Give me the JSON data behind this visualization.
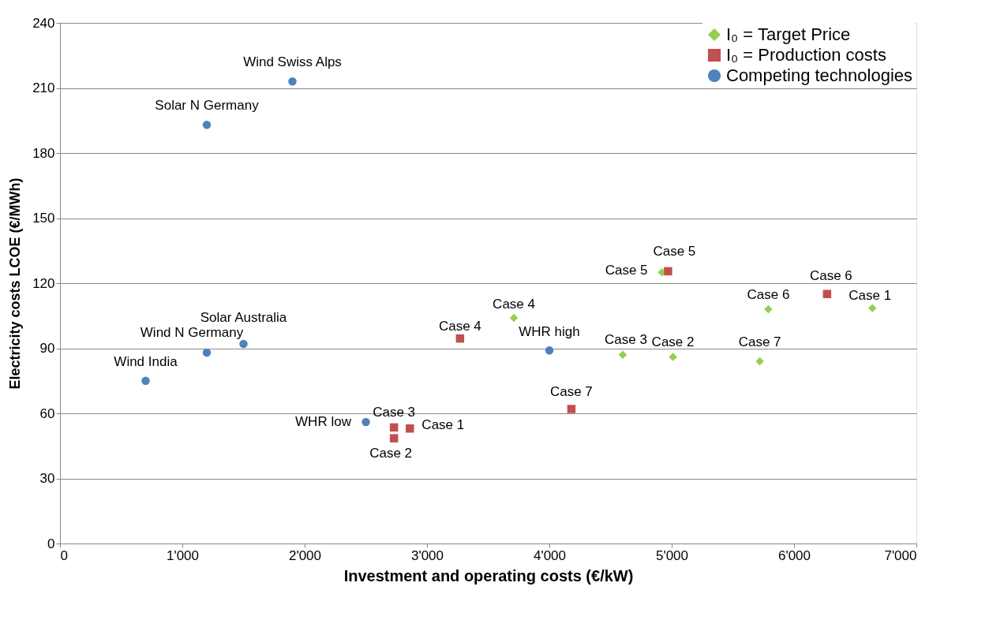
{
  "chart_data": {
    "type": "scatter",
    "xlabel": "Investment and operating costs (€/kW)",
    "ylabel": "Electricity costs LCOE (€/MWh)",
    "xlim": [
      0,
      7000
    ],
    "xticks": [
      0,
      {
        "value": 1000,
        "label": "1'000"
      },
      {
        "value": 2000,
        "label": "2'000"
      },
      {
        "value": 3000,
        "label": "3'000"
      },
      {
        "value": 4000,
        "label": "4'000"
      },
      {
        "value": 5000,
        "label": "5'000"
      },
      {
        "value": 6000,
        "label": "6'000"
      },
      {
        "value": 7000,
        "label": "7'000"
      }
    ],
    "ylim": [
      0,
      240
    ],
    "yticks": [
      0,
      30,
      60,
      90,
      120,
      150,
      180,
      210,
      240
    ],
    "grid": "y",
    "legend": "top right",
    "series": [
      {
        "name": "I₀ = Target Price",
        "color": "#92d050",
        "marker": "diamond",
        "x": [
          4920,
          3710,
          4600,
          5010,
          5720,
          5790,
          6640
        ],
        "values": [
          125,
          104,
          87,
          86,
          84,
          108,
          108.5
        ]
      },
      {
        "name": "I₀ = Production costs",
        "color": "#c0504d",
        "marker": "square",
        "x": [
          2730,
          2730,
          2860,
          3270,
          4180,
          4970,
          6270
        ],
        "values": [
          53.5,
          48.5,
          53,
          94.5,
          62,
          125.5,
          115
        ]
      },
      {
        "name": "Competing technologies",
        "color": "#4f81bd",
        "marker": "circle",
        "x": [
          700,
          1200,
          1500,
          1200,
          1900,
          2500,
          4000
        ],
        "values": [
          75,
          88,
          92,
          193,
          213,
          56,
          89
        ]
      }
    ],
    "annotations": [
      {
        "text": "Wind India",
        "x": 700,
        "y": 75
      },
      {
        "text": "Wind N Germany",
        "x": 1200,
        "y": 88
      },
      {
        "text": "Solar Australia",
        "x": 1500,
        "y": 92
      },
      {
        "text": "Solar N Germany",
        "x": 1200,
        "y": 193
      },
      {
        "text": "Wind Swiss Alps",
        "x": 1900,
        "y": 213
      },
      {
        "text": "WHR low",
        "x": 2500,
        "y": 56
      },
      {
        "text": "WHR high",
        "x": 4000,
        "y": 89
      },
      {
        "text": "Case 3",
        "x": 2730,
        "y": 53.5
      },
      {
        "text": "Case 2",
        "x": 2730,
        "y": 48.5
      },
      {
        "text": "Case 1",
        "x": 2860,
        "y": 53
      },
      {
        "text": "Case 4",
        "x": 3270,
        "y": 94.5
      },
      {
        "text": "Case 7",
        "x": 4180,
        "y": 62
      },
      {
        "text": "Case 5",
        "x": 4970,
        "y": 125.5
      },
      {
        "text": "Case 6",
        "x": 6270,
        "y": 115
      },
      {
        "text": "Case 5",
        "x": 4920,
        "y": 125
      },
      {
        "text": "Case 4",
        "x": 3710,
        "y": 104
      },
      {
        "text": "Case 3",
        "x": 4600,
        "y": 87
      },
      {
        "text": "Case 2",
        "x": 5010,
        "y": 86
      },
      {
        "text": "Case 7",
        "x": 5720,
        "y": 84
      },
      {
        "text": "Case 6",
        "x": 5790,
        "y": 108
      },
      {
        "text": "Case 1",
        "x": 6640,
        "y": 108.5
      }
    ]
  }
}
